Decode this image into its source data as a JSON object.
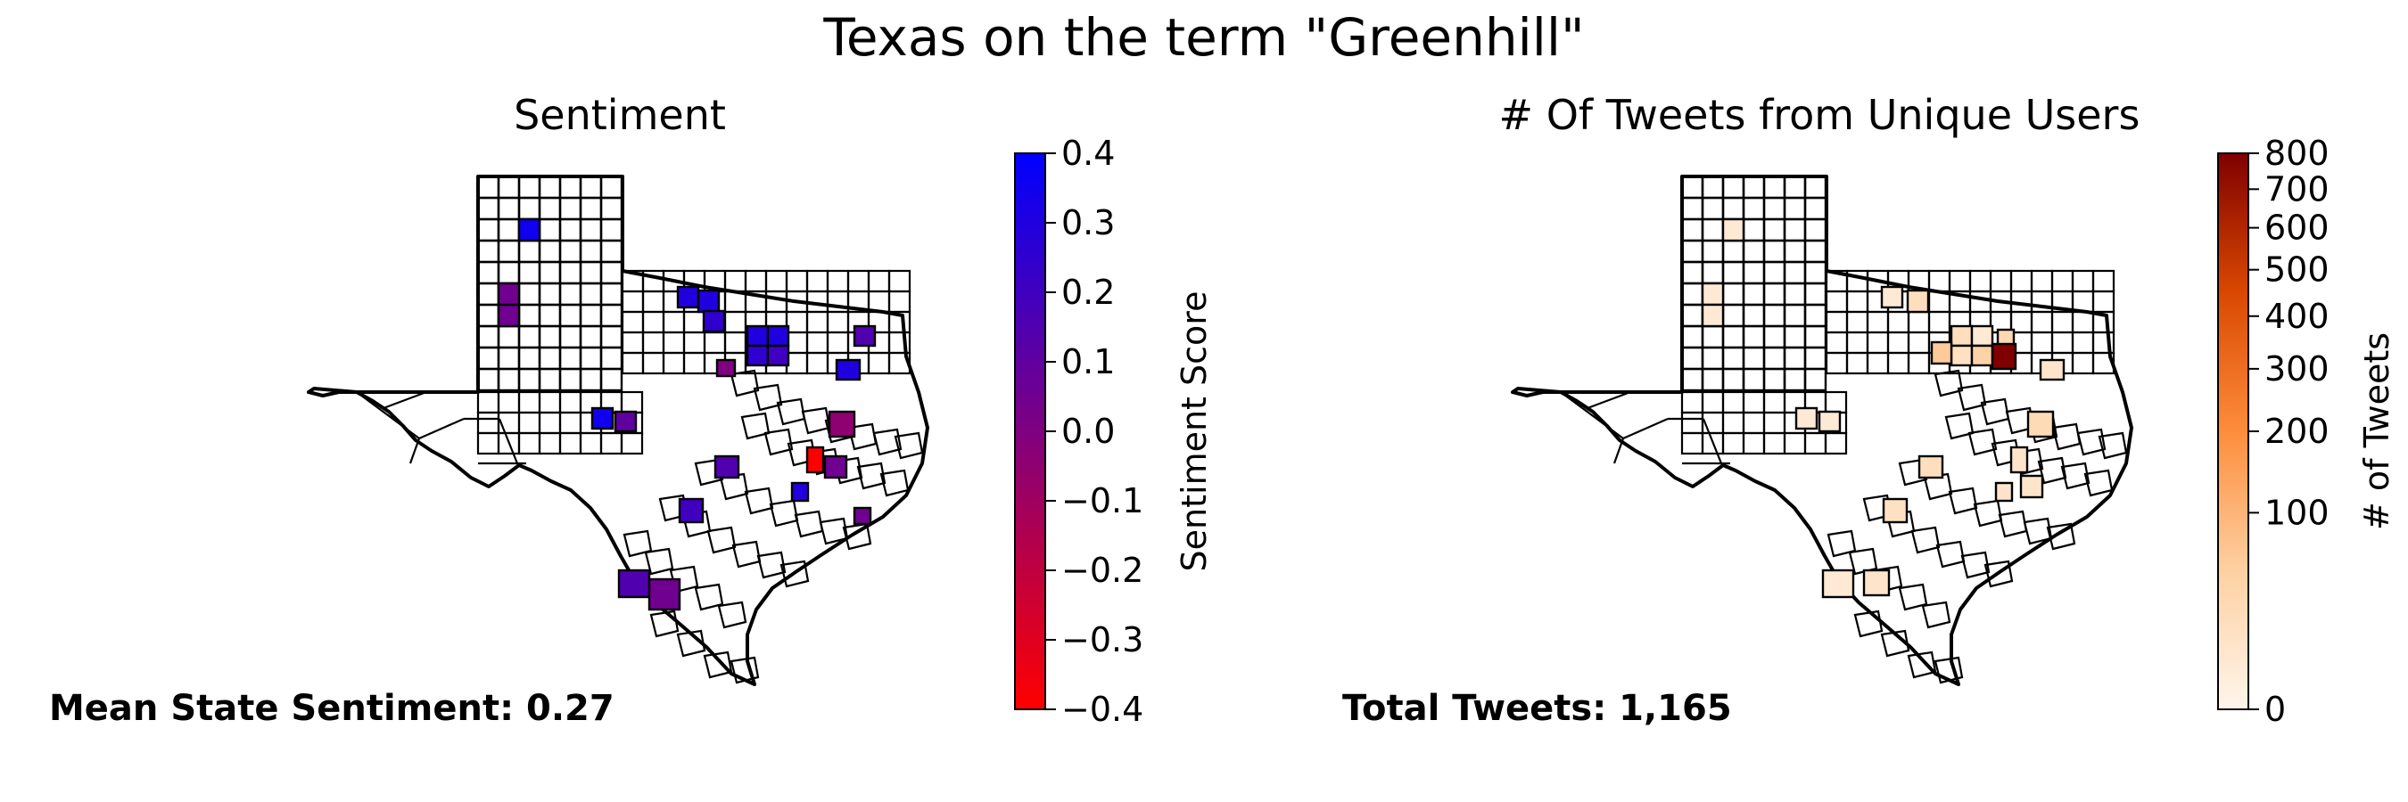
{
  "chart_data": [
    {
      "type": "choropleth",
      "title": "Texas on the term \"Greenhill\"",
      "subtitle": "Sentiment",
      "colorbar": {
        "label": "Sentiment Score",
        "min": -0.4,
        "max": 0.4,
        "ticks": [
          0.4,
          0.3,
          0.2,
          0.1,
          0.0,
          -0.1,
          -0.2,
          -0.3,
          -0.4
        ],
        "tick_labels": [
          "0.4",
          "0.3",
          "0.2",
          "0.1",
          "0.0",
          "−0.1",
          "−0.2",
          "−0.3",
          "−0.4"
        ],
        "colors": {
          "low": "#ff0000",
          "high": "#0000ff"
        }
      },
      "annotation": "Mean State Sentiment: 0.27",
      "highlighted_regions": [
        {
          "sentiment": 0.35
        },
        {
          "sentiment": 0.05
        },
        {
          "sentiment": 0.05
        },
        {
          "sentiment": 0.3
        },
        {
          "sentiment": 0.3
        },
        {
          "sentiment": 0.25
        },
        {
          "sentiment": 0.3
        },
        {
          "sentiment": 0.3
        },
        {
          "sentiment": 0.25
        },
        {
          "sentiment": 0.2
        },
        {
          "sentiment": 0.0
        },
        {
          "sentiment": 0.15
        },
        {
          "sentiment": 0.3
        },
        {
          "sentiment": 0.35
        },
        {
          "sentiment": 0.1
        },
        {
          "sentiment": -0.05
        },
        {
          "sentiment": 0.15
        },
        {
          "sentiment": -0.4
        },
        {
          "sentiment": 0.05
        },
        {
          "sentiment": 0.2
        },
        {
          "sentiment": 0.3
        },
        {
          "sentiment": 0.15
        },
        {
          "sentiment": 0.05
        },
        {
          "sentiment": 0.05
        }
      ]
    },
    {
      "type": "choropleth",
      "subtitle": "# Of Tweets from Unique Users",
      "colorbar": {
        "label": "# of Tweets",
        "scale": "sqrt",
        "min": 0,
        "max": 800,
        "ticks": [
          800,
          700,
          600,
          500,
          400,
          300,
          200,
          100,
          0
        ],
        "tick_labels": [
          "800",
          "700",
          "600",
          "500",
          "400",
          "300",
          "200",
          "100",
          "0"
        ],
        "colors": {
          "low": "#fff5eb",
          "high": "#7f0000"
        }
      },
      "annotation": "Total Tweets: 1,165",
      "highlighted_regions": [
        {
          "tweets": 5
        },
        {
          "tweets": 5
        },
        {
          "tweets": 5
        },
        {
          "tweets": 5
        },
        {
          "tweets": 20
        },
        {
          "tweets": 20
        },
        {
          "tweets": 5
        },
        {
          "tweets": 15
        },
        {
          "tweets": 45
        },
        {
          "tweets": 30
        },
        {
          "tweets": 60
        },
        {
          "tweets": 800
        },
        {
          "tweets": 10
        },
        {
          "tweets": 5
        },
        {
          "tweets": 5
        },
        {
          "tweets": 25
        },
        {
          "tweets": 20
        },
        {
          "tweets": 10
        },
        {
          "tweets": 10
        },
        {
          "tweets": 15
        },
        {
          "tweets": 10
        },
        {
          "tweets": 5
        },
        {
          "tweets": 10
        }
      ]
    }
  ]
}
